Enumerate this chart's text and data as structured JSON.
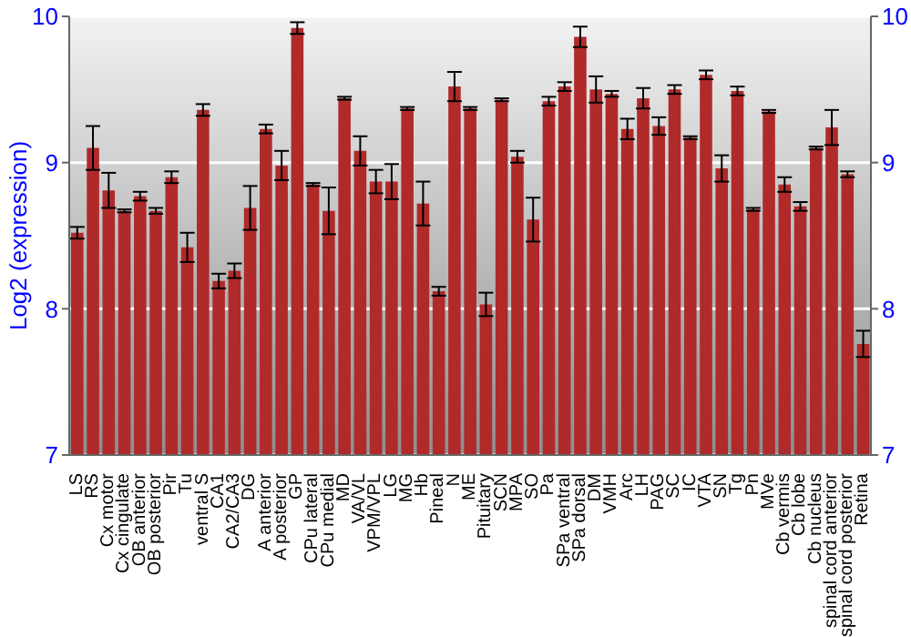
{
  "chart_data": {
    "type": "bar",
    "ylabel": "Log2 (expression)",
    "categories": [
      "LS",
      "RS",
      "Cx motor",
      "Cx cingulate",
      "OB anterior",
      "OB posterior",
      "Pir",
      "Tu",
      "ventral S",
      "CA1",
      "CA2/CA3",
      "DG",
      "A anterior",
      "A posterior",
      "GP",
      "CPu lateral",
      "CPu medial",
      "MD",
      "VA/VL",
      "VPM/VPL",
      "LG",
      "MG",
      "Hb",
      "Pineal",
      "N",
      "ME",
      "Pituitary",
      "SCN",
      "MPA",
      "SO",
      "Pa",
      "SPa ventral",
      "SPa dorsal",
      "DM",
      "VMH",
      "Arc",
      "LH",
      "PAG",
      "SC",
      "IC",
      "VTA",
      "SN",
      "Tg",
      "Pn",
      "MVe",
      "Cb vermis",
      "Cb lobe",
      "Cb nucleus",
      "spinal cord anterior",
      "spinal cord posterior",
      "Retina"
    ],
    "values": [
      8.52,
      9.1,
      8.81,
      8.67,
      8.77,
      8.67,
      8.9,
      8.42,
      9.36,
      8.19,
      8.26,
      8.69,
      9.23,
      8.98,
      9.92,
      8.85,
      8.67,
      9.44,
      9.08,
      8.87,
      8.87,
      9.37,
      8.72,
      8.12,
      9.52,
      9.37,
      8.03,
      9.43,
      9.04,
      8.61,
      9.42,
      9.52,
      9.86,
      9.5,
      9.47,
      9.23,
      9.44,
      9.25,
      9.5,
      9.17,
      9.6,
      8.96,
      9.49,
      8.68,
      9.35,
      8.85,
      8.7,
      9.1,
      9.24,
      8.92,
      7.76
    ],
    "errors": [
      0.04,
      0.15,
      0.12,
      0.01,
      0.03,
      0.02,
      0.04,
      0.1,
      0.04,
      0.05,
      0.05,
      0.15,
      0.03,
      0.1,
      0.04,
      0.01,
      0.16,
      0.01,
      0.1,
      0.08,
      0.12,
      0.01,
      0.15,
      0.03,
      0.1,
      0.01,
      0.08,
      0.01,
      0.04,
      0.15,
      0.03,
      0.03,
      0.07,
      0.09,
      0.02,
      0.07,
      0.07,
      0.06,
      0.03,
      0.01,
      0.03,
      0.09,
      0.03,
      0.01,
      0.01,
      0.05,
      0.03,
      0.01,
      0.12,
      0.02,
      0.09
    ],
    "color": "#b02a2a",
    "ylim": [
      7,
      10
    ],
    "yticks": [
      7,
      8,
      9,
      10
    ],
    "y2lim": [
      7,
      10
    ],
    "y2ticks": [
      7,
      8,
      9,
      10
    ],
    "grid": "y"
  }
}
